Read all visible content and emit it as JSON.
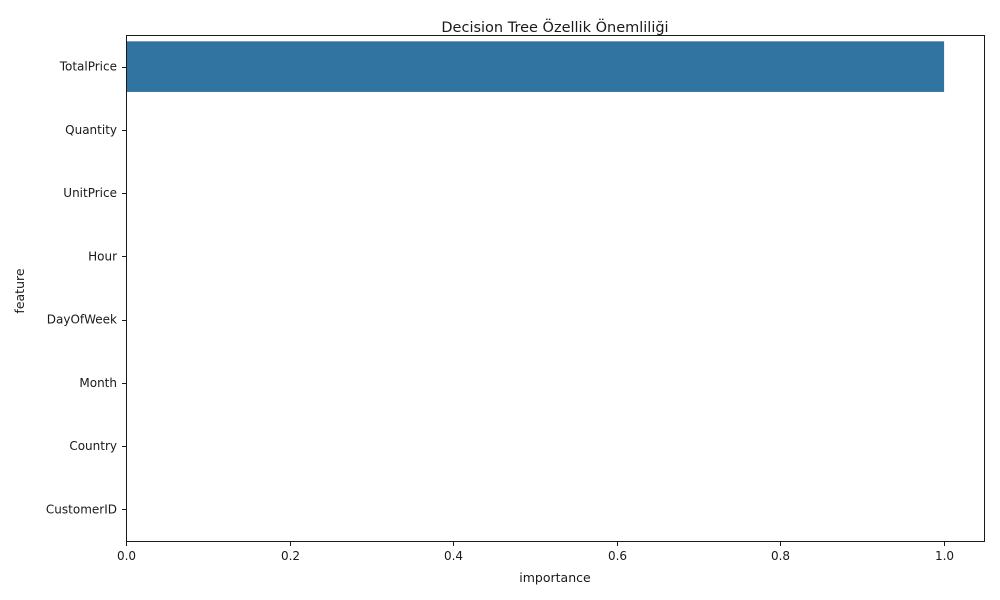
{
  "chart_data": {
    "type": "bar",
    "orientation": "horizontal",
    "title": "Decision Tree Özellik Önemliliği",
    "xlabel": "importance",
    "ylabel": "feature",
    "categories": [
      "TotalPrice",
      "Quantity",
      "UnitPrice",
      "Hour",
      "DayOfWeek",
      "Month",
      "Country",
      "CustomerID"
    ],
    "values": [
      1.0,
      0.0,
      0.0,
      0.0,
      0.0,
      0.0,
      0.0,
      0.0
    ],
    "xlim": [
      0,
      1.05
    ],
    "xticks": [
      "0.0",
      "0.2",
      "0.4",
      "0.6",
      "0.8",
      "1.0"
    ],
    "bar_color": "#3274a1",
    "grid": false,
    "legend": "none"
  }
}
